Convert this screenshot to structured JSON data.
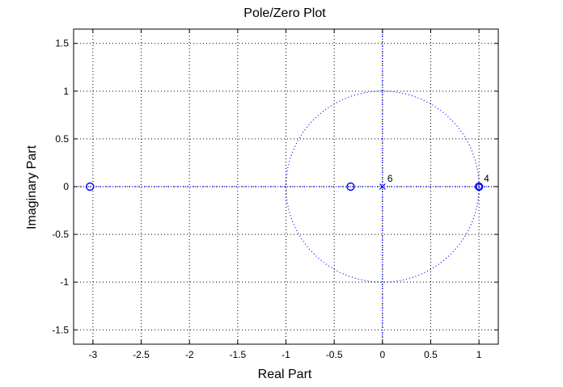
{
  "chart_data": {
    "type": "scatter",
    "title": "Pole/Zero Plot",
    "xlabel": "Real Part",
    "ylabel": "Imaginary Part",
    "xlim": [
      -3.2,
      1.2
    ],
    "ylim": [
      -1.65,
      1.65
    ],
    "xticks": [
      -3,
      -2.5,
      -2,
      -1.5,
      -1,
      -0.5,
      0,
      0.5,
      1
    ],
    "xtick_labels": [
      "-3",
      "-2.5",
      "-2",
      "-1.5",
      "-1",
      "-0.5",
      "0",
      "0.5",
      "1"
    ],
    "yticks": [
      -1.5,
      -1,
      -0.5,
      0,
      0.5,
      1,
      1.5
    ],
    "ytick_labels": [
      "-1.5",
      "-1",
      "-0.5",
      "0",
      "0.5",
      "1",
      "1.5"
    ],
    "grid": true,
    "unit_circle": true,
    "color": "#0000ff",
    "zeros": [
      {
        "x": -3.03,
        "y": 0,
        "multiplicity": 1
      },
      {
        "x": -0.33,
        "y": 0,
        "multiplicity": 1
      },
      {
        "x": 1,
        "y": 0,
        "multiplicity": 4
      }
    ],
    "poles": [
      {
        "x": 0,
        "y": 0,
        "multiplicity": 6
      }
    ],
    "multiplicity_labels": [
      "6",
      "4"
    ]
  }
}
